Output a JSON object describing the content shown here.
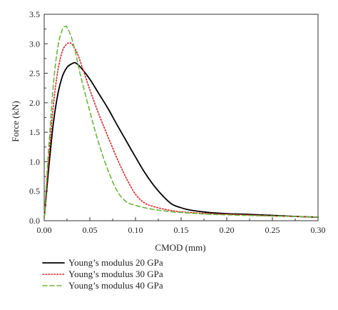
{
  "chart_data": {
    "type": "line",
    "title": "",
    "xlabel": "CMOD (mm)",
    "ylabel": "Force (kN)",
    "xlim": [
      0,
      0.3
    ],
    "ylim": [
      0,
      3.5
    ],
    "xticks": [
      "0.00",
      "0.05",
      "0.10",
      "0.15",
      "0.20",
      "0.25",
      "0.30"
    ],
    "yticks": [
      "0.0",
      "0.5",
      "1.0",
      "1.5",
      "2.0",
      "2.5",
      "3.0",
      "3.5"
    ],
    "grid": false,
    "legend_position": "bottom",
    "series": [
      {
        "name": "Young’s modulus 20 GPa",
        "color": "#000000",
        "style": "solid",
        "x": [
          0,
          0.005,
          0.01,
          0.015,
          0.02,
          0.025,
          0.03,
          0.033,
          0.035,
          0.04,
          0.05,
          0.06,
          0.07,
          0.08,
          0.09,
          0.1,
          0.11,
          0.12,
          0.13,
          0.14,
          0.15,
          0.16,
          0.18,
          0.2,
          0.22,
          0.25,
          0.28,
          0.3
        ],
        "y": [
          0.05,
          0.9,
          1.65,
          2.15,
          2.45,
          2.6,
          2.66,
          2.68,
          2.67,
          2.6,
          2.4,
          2.15,
          1.9,
          1.62,
          1.35,
          1.08,
          0.82,
          0.6,
          0.42,
          0.28,
          0.22,
          0.18,
          0.14,
          0.12,
          0.11,
          0.09,
          0.07,
          0.06
        ]
      },
      {
        "name": "Young’s modulus 30 GPa",
        "color": "#d62020",
        "style": "dotted",
        "x": [
          0,
          0.005,
          0.01,
          0.015,
          0.02,
          0.025,
          0.028,
          0.03,
          0.035,
          0.04,
          0.05,
          0.06,
          0.07,
          0.08,
          0.09,
          0.1,
          0.11,
          0.12,
          0.13,
          0.14,
          0.15,
          0.16,
          0.18,
          0.2,
          0.22,
          0.25,
          0.28,
          0.3
        ],
        "y": [
          0.05,
          1.05,
          1.95,
          2.55,
          2.88,
          3.0,
          3.01,
          3.0,
          2.88,
          2.68,
          2.22,
          1.8,
          1.42,
          1.05,
          0.72,
          0.45,
          0.3,
          0.24,
          0.2,
          0.17,
          0.15,
          0.14,
          0.12,
          0.11,
          0.1,
          0.08,
          0.07,
          0.06
        ]
      },
      {
        "name": "Young’s modulus 40 GPa",
        "color": "#6cb33f",
        "style": "dashed",
        "x": [
          0,
          0.005,
          0.01,
          0.015,
          0.02,
          0.023,
          0.025,
          0.03,
          0.035,
          0.04,
          0.05,
          0.06,
          0.07,
          0.08,
          0.09,
          0.1,
          0.11,
          0.12,
          0.13,
          0.14,
          0.15,
          0.16,
          0.18,
          0.2,
          0.22,
          0.25,
          0.28,
          0.3
        ],
        "y": [
          0.05,
          1.25,
          2.3,
          2.95,
          3.25,
          3.29,
          3.28,
          3.1,
          2.8,
          2.45,
          1.85,
          1.3,
          0.85,
          0.5,
          0.32,
          0.26,
          0.22,
          0.19,
          0.17,
          0.15,
          0.14,
          0.13,
          0.11,
          0.1,
          0.09,
          0.08,
          0.07,
          0.06
        ]
      }
    ]
  }
}
